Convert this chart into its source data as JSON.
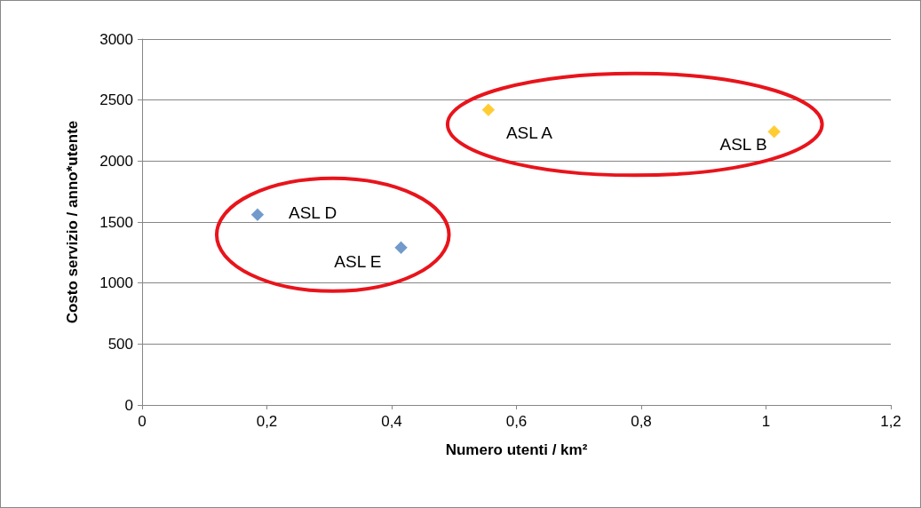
{
  "chart_data": {
    "type": "scatter",
    "xlabel": "Numero utenti / km²",
    "ylabel": "Costo servizio / anno*utente",
    "series": [
      {
        "color": "#4f81bd",
        "x": [
          0.185,
          0.415
        ],
        "values": [
          1560,
          1290
        ]
      },
      {
        "color": "#ffc000",
        "x": [
          0.555,
          1.013
        ],
        "values": [
          2420,
          2240
        ]
      }
    ],
    "annotations": [
      {
        "text": "ASL A",
        "x": 0.555,
        "y": 2420
      },
      {
        "text": "ASL B",
        "x": 1.013,
        "y": 2240
      },
      {
        "text": "ASL D",
        "x": 0.185,
        "y": 1560
      },
      {
        "text": "ASL E",
        "x": 0.415,
        "y": 1290
      }
    ],
    "xlim": [
      0,
      1.2
    ],
    "xticks": [
      0,
      {
        "value": 0.2,
        "label": "0,2"
      },
      {
        "value": 0.4,
        "label": "0,4"
      },
      {
        "value": 0.6,
        "label": "0,6"
      },
      {
        "value": 0.8,
        "label": "0,8"
      },
      1,
      {
        "value": 1.2,
        "label": "1,2"
      }
    ],
    "ylim": [
      0,
      3000
    ],
    "yticks": [
      0,
      500,
      1000,
      1500,
      2000,
      2500,
      3000
    ],
    "grid": "y",
    "marker": "diamond"
  }
}
